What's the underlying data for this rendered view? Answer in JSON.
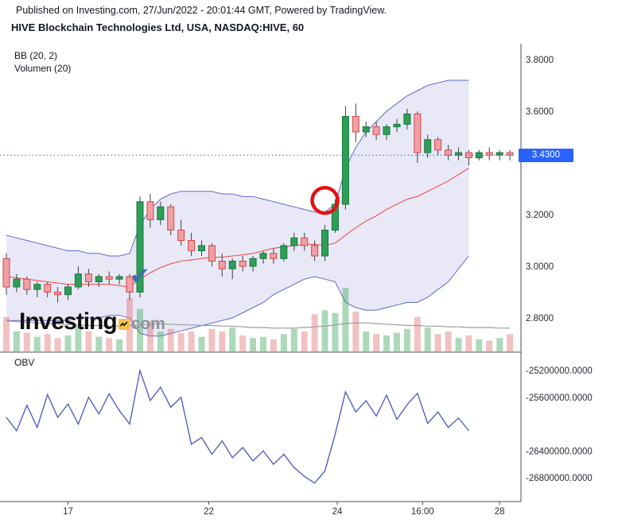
{
  "header": {
    "published_line": "Published on Investing.com, 27/Jun/2022 - 20:01:44 GMT, Powered by TradingView.",
    "title": "HIVE Blockchain Technologies Ltd, USA, NASDAQ:HIVE, 60"
  },
  "legend": {
    "bb": "BB (20, 2)",
    "volume": "Volumen (20)"
  },
  "obv_label": "OBV",
  "watermark": {
    "name": "Investing",
    "suffix": "com"
  },
  "last_price": {
    "label": "3.4300",
    "value": 3.43
  },
  "colors": {
    "candle_up_fill": "#2f9e57",
    "candle_up_border": "#15793c",
    "candle_down_fill": "#f0a0a5",
    "candle_down_border": "#d24848",
    "wick": "#3c3f46",
    "volume_up": "rgba(70,170,100,0.45)",
    "volume_down": "rgba(225,110,110,0.42)",
    "bb_line": "#6066c9",
    "bb_fill": "rgba(98,104,201,0.15)",
    "bb_basis": "#ef5350",
    "volume_ma": "#9b9b9b",
    "obv_line": "#4a56bd",
    "last_price_line": "#2962ff",
    "badge_bg": "#2962ff",
    "badge_text": "#ffffff",
    "axis_line": "#4a4c52",
    "axis_text": "#2a2c33",
    "annotation_circle": "#e01212",
    "annotation_check": "#3a70ad"
  },
  "chart_data": [
    {
      "type": "candlestick",
      "symbol": "NASDAQ:HIVE",
      "company": "HIVE Blockchain Technologies Ltd",
      "region": "USA",
      "interval": "60",
      "ylim": [
        2.67,
        3.86
      ],
      "grid": false,
      "y_ticks": [
        {
          "label": "3.8000",
          "value": 3.8
        },
        {
          "label": "3.6000",
          "value": 3.6
        },
        {
          "label": "3.2000",
          "value": 3.2
        },
        {
          "label": "3.0000",
          "value": 3.0
        },
        {
          "label": "2.8000",
          "value": 2.8
        }
      ],
      "x_ticks": [
        {
          "label": "17",
          "i": 6
        },
        {
          "label": "22",
          "i": 19.7
        },
        {
          "label": "24",
          "i": 32.2
        },
        {
          "label": "16:00",
          "i": 40.5
        },
        {
          "label": "28",
          "i": 48
        }
      ],
      "candles": {
        "open": [
          3.03,
          2.92,
          2.95,
          2.91,
          2.93,
          2.9,
          2.89,
          2.92,
          2.97,
          2.94,
          2.96,
          2.95,
          2.96,
          2.9,
          3.25,
          3.18,
          3.23,
          3.14,
          3.1,
          3.06,
          3.08,
          3.02,
          2.99,
          3.02,
          3.0,
          3.03,
          3.05,
          3.03,
          3.08,
          3.11,
          3.08,
          3.04,
          3.14,
          3.24,
          3.58,
          3.52,
          3.54,
          3.51,
          3.54,
          3.55,
          3.59,
          3.44,
          3.49,
          3.45,
          3.43,
          3.44,
          3.42,
          3.44,
          3.43,
          3.44
        ],
        "high": [
          3.05,
          2.97,
          2.96,
          2.94,
          2.94,
          2.92,
          2.93,
          3.0,
          2.99,
          2.97,
          2.98,
          2.97,
          2.97,
          3.27,
          3.28,
          3.25,
          3.24,
          3.18,
          3.13,
          3.1,
          3.09,
          3.05,
          3.03,
          3.04,
          3.04,
          3.06,
          3.07,
          3.09,
          3.13,
          3.13,
          3.1,
          3.16,
          3.26,
          3.62,
          3.63,
          3.56,
          3.56,
          3.55,
          3.57,
          3.61,
          3.6,
          3.51,
          3.5,
          3.47,
          3.46,
          3.45,
          3.45,
          3.46,
          3.45,
          3.45
        ],
        "low": [
          2.89,
          2.9,
          2.89,
          2.88,
          2.88,
          2.86,
          2.87,
          2.91,
          2.92,
          2.92,
          2.93,
          2.93,
          2.87,
          2.88,
          3.15,
          3.16,
          3.12,
          3.08,
          3.04,
          3.04,
          3.0,
          2.96,
          2.95,
          2.98,
          2.98,
          3.01,
          3.01,
          3.02,
          3.06,
          3.06,
          3.02,
          3.02,
          3.13,
          3.22,
          3.48,
          3.5,
          3.49,
          3.49,
          3.52,
          3.53,
          3.4,
          3.42,
          3.43,
          3.41,
          3.41,
          3.39,
          3.41,
          3.41,
          3.41,
          3.41
        ],
        "close": [
          2.92,
          2.95,
          2.91,
          2.93,
          2.9,
          2.89,
          2.92,
          2.97,
          2.94,
          2.96,
          2.95,
          2.96,
          2.9,
          3.25,
          3.18,
          3.23,
          3.14,
          3.1,
          3.06,
          3.08,
          3.02,
          2.99,
          3.02,
          3.0,
          3.03,
          3.05,
          3.03,
          3.08,
          3.11,
          3.08,
          3.04,
          3.14,
          3.24,
          3.58,
          3.52,
          3.54,
          3.51,
          3.54,
          3.55,
          3.59,
          3.44,
          3.49,
          3.45,
          3.43,
          3.44,
          3.42,
          3.44,
          3.43,
          3.44,
          3.43
        ]
      },
      "volume": [
        52000,
        30000,
        28000,
        22000,
        26000,
        20000,
        24000,
        38000,
        30000,
        22000,
        20000,
        18000,
        80000,
        64000,
        46000,
        30000,
        34000,
        28000,
        30000,
        22000,
        34000,
        30000,
        36000,
        24000,
        20000,
        22000,
        18000,
        26000,
        34000,
        30000,
        56000,
        62000,
        58000,
        96000,
        60000,
        30000,
        26000,
        24000,
        28000,
        34000,
        52000,
        36000,
        26000,
        30000,
        20000,
        24000,
        18000,
        16000,
        20000,
        26000
      ],
      "volume_ma": [
        46000,
        45000,
        44000,
        43000,
        42000,
        41000,
        40000,
        40000,
        39000,
        39000,
        38000,
        38000,
        39000,
        40000,
        41000,
        41000,
        41000,
        40000,
        40000,
        39000,
        39000,
        38000,
        38000,
        37000,
        36000,
        36000,
        35000,
        35000,
        35000,
        36000,
        37000,
        38000,
        40000,
        42000,
        43000,
        43000,
        42000,
        41000,
        40000,
        39000,
        39000,
        38000,
        38000,
        37000,
        37000,
        36000,
        36000,
        36000,
        35000,
        35000
      ],
      "bollinger": {
        "upper": [
          3.12,
          3.11,
          3.1,
          3.09,
          3.08,
          3.07,
          3.06,
          3.06,
          3.05,
          3.05,
          3.04,
          3.04,
          3.05,
          3.16,
          3.22,
          3.26,
          3.28,
          3.29,
          3.29,
          3.29,
          3.29,
          3.28,
          3.28,
          3.27,
          3.27,
          3.26,
          3.25,
          3.24,
          3.23,
          3.22,
          3.21,
          3.21,
          3.24,
          3.38,
          3.46,
          3.52,
          3.56,
          3.6,
          3.63,
          3.66,
          3.68,
          3.7,
          3.71,
          3.72,
          3.72,
          3.72
        ],
        "basis": [
          2.96,
          2.955,
          2.95,
          2.945,
          2.94,
          2.935,
          2.93,
          2.93,
          2.93,
          2.93,
          2.93,
          2.925,
          2.92,
          2.95,
          2.975,
          2.995,
          3.01,
          3.02,
          3.025,
          3.03,
          3.035,
          3.035,
          3.04,
          3.045,
          3.05,
          3.06,
          3.07,
          3.075,
          3.08,
          3.085,
          3.085,
          3.08,
          3.09,
          3.12,
          3.15,
          3.175,
          3.195,
          3.22,
          3.24,
          3.26,
          3.27,
          3.29,
          3.31,
          3.33,
          3.355,
          3.38
        ],
        "lower": [
          2.79,
          2.79,
          2.79,
          2.79,
          2.79,
          2.79,
          2.79,
          2.8,
          2.8,
          2.8,
          2.81,
          2.81,
          2.8,
          2.74,
          2.73,
          2.73,
          2.74,
          2.75,
          2.76,
          2.77,
          2.78,
          2.79,
          2.8,
          2.82,
          2.84,
          2.86,
          2.89,
          2.91,
          2.93,
          2.95,
          2.96,
          2.95,
          2.94,
          2.86,
          2.84,
          2.83,
          2.83,
          2.84,
          2.85,
          2.86,
          2.86,
          2.88,
          2.91,
          2.94,
          2.99,
          3.04
        ]
      },
      "annotations": [
        {
          "type": "circle",
          "name": "breakout-highlight",
          "i": 31,
          "price": 3.255,
          "radius": 16
        },
        {
          "type": "check",
          "name": "entry-checkmark",
          "i": 13,
          "price": 2.93
        }
      ]
    },
    {
      "type": "line",
      "name": "OBV",
      "y_ticks": [
        {
          "label": "-25200000.0000",
          "value": -25200000
        },
        {
          "label": "-25600000.0000",
          "value": -25600000
        },
        {
          "label": "-26400000.0000",
          "value": -26400000
        },
        {
          "label": "-26800000.0000",
          "value": -26800000
        }
      ],
      "values": [
        -25900000,
        -26100000,
        -25720000,
        -26050000,
        -25560000,
        -25900000,
        -25700000,
        -26000000,
        -25600000,
        -25850000,
        -25550000,
        -25800000,
        -26000000,
        -25200000,
        -25650000,
        -25450000,
        -25750000,
        -25600000,
        -26300000,
        -26200000,
        -26450000,
        -26250000,
        -26500000,
        -26350000,
        -26550000,
        -26400000,
        -26600000,
        -26450000,
        -26650000,
        -26780000,
        -26880000,
        -26700000,
        -26150000,
        -25520000,
        -25820000,
        -25650000,
        -25880000,
        -25570000,
        -25930000,
        -25710000,
        -25540000,
        -25990000,
        -25820000,
        -26050000,
        -25910000,
        -26100000
      ]
    }
  ]
}
